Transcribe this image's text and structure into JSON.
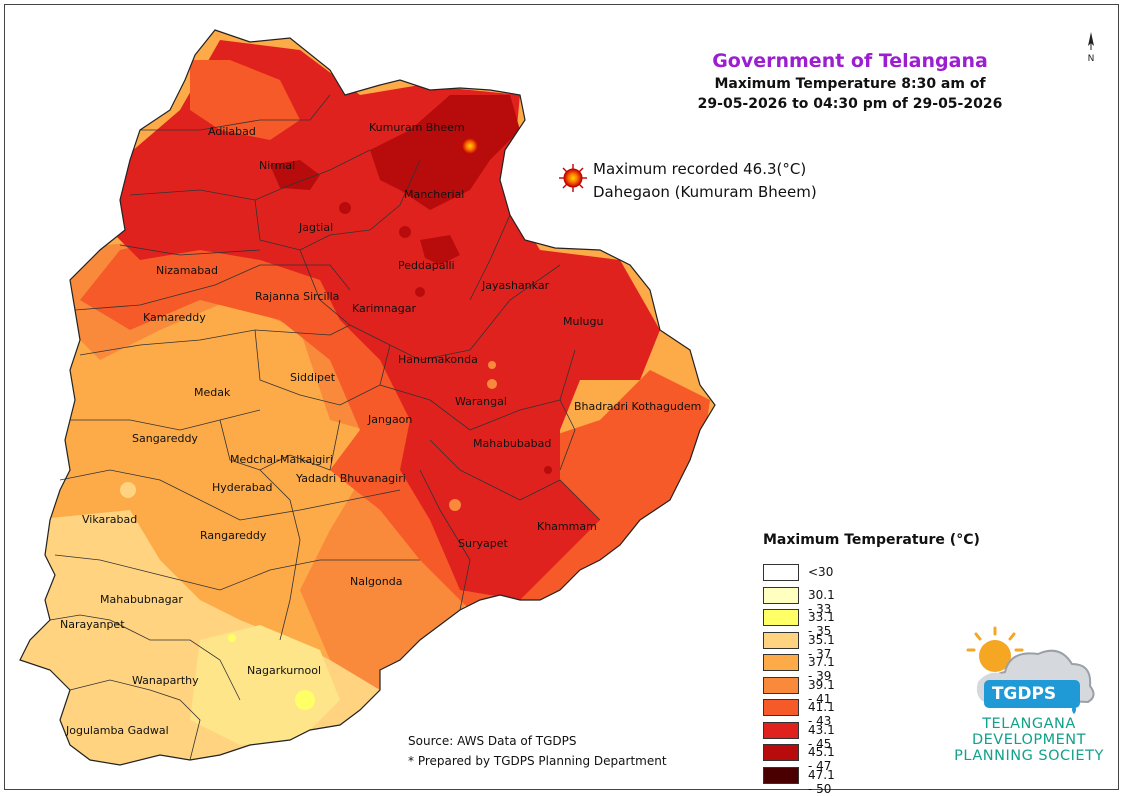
{
  "header": {
    "title": "Government of Telangana",
    "subtitle_line1": "Maximum Temperature 8:30 am of",
    "subtitle_line2": "29-05-2026 to 04:30 pm of 29-05-2026"
  },
  "north_arrow": {
    "label": "N",
    "icon": "north-arrow-icon"
  },
  "max_record": {
    "line1": "Maximum recorded 46.3(°C)",
    "line2": "Dahegaon (Kumuram Bheem)",
    "icon": "sun-marker-icon"
  },
  "districts": [
    "Adilabad",
    "Kumuram Bheem",
    "Nirmal",
    "Mancherial",
    "Jagtial",
    "Nizamabad",
    "Peddapalli",
    "Jayashankar",
    "Rajanna Sircilla",
    "Karimnagar",
    "Kamareddy",
    "Mulugu",
    "Hanumakonda",
    "Siddipet",
    "Medak",
    "Warangal",
    "Bhadradri Kothagudem",
    "Jangaon",
    "Sangareddy",
    "Mahabubabad",
    "Medchal-Malkajgiri",
    "Yadadri Bhuvanagiri",
    "Hyderabad",
    "Vikarabad",
    "Khammam",
    "Rangareddy",
    "Suryapet",
    "Nalgonda",
    "Mahabubnagar",
    "Narayanpet",
    "Nagarkurnool",
    "Wanaparthy",
    "Jogulamba Gadwal"
  ],
  "legend": {
    "title": "Maximum Temperature (°C)",
    "classes": [
      {
        "label": "<30",
        "color": "#ffffff"
      },
      {
        "label": "30.1 - 33",
        "color": "#ffffc0"
      },
      {
        "label": "33.1 - 35",
        "color": "#ffff66"
      },
      {
        "label": "35.1 - 37",
        "color": "#ffd37f"
      },
      {
        "label": "37.1 - 39",
        "color": "#fdaa48"
      },
      {
        "label": "39.1 - 41",
        "color": "#f98a3c"
      },
      {
        "label": "41.1 - 43",
        "color": "#f55a28"
      },
      {
        "label": "43.1 - 45",
        "color": "#e0221e"
      },
      {
        "label": "45.1 - 47",
        "color": "#b80c0c"
      },
      {
        "label": "47.1 - 50",
        "color": "#4a0000"
      }
    ]
  },
  "source": {
    "line1": "Source: AWS Data of TGDPS",
    "line2": "* Prepared by TGDPS Planning Department"
  },
  "logo": {
    "abbr": "TGDPS",
    "line1": "TELANGANA",
    "line2": "DEVELOPMENT",
    "line3": "PLANNING SOCIETY",
    "icon": "sun-cloud-logo-icon"
  }
}
